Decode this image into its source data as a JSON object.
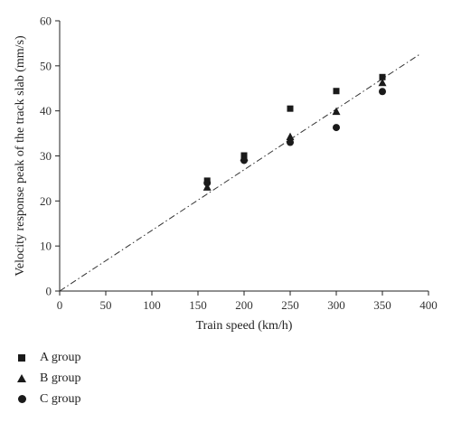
{
  "chart_data": {
    "type": "scatter",
    "xlabel": "Train speed (km/h)",
    "ylabel": "Velocity response peak of the track slab (mm/s)",
    "xlim": [
      0,
      400
    ],
    "ylim": [
      0,
      60
    ],
    "xticks": [
      0,
      50,
      100,
      150,
      200,
      250,
      300,
      350,
      400
    ],
    "yticks": [
      0,
      10,
      20,
      30,
      40,
      50,
      60
    ],
    "grid": false,
    "legend_position": "below",
    "series": [
      {
        "name": "A group",
        "marker": "square",
        "x": [
          160,
          200,
          250,
          300,
          350
        ],
        "y": [
          24.5,
          30.1,
          40.5,
          44.4,
          47.5
        ]
      },
      {
        "name": "B group",
        "marker": "triangle",
        "x": [
          160,
          200,
          250,
          300,
          350
        ],
        "y": [
          23.0,
          29.6,
          34.2,
          39.8,
          46.2
        ]
      },
      {
        "name": "C group",
        "marker": "circle",
        "x": [
          160,
          200,
          250,
          300,
          350
        ],
        "y": [
          24.0,
          29.0,
          33.0,
          36.3,
          44.3
        ]
      }
    ],
    "trend_line": {
      "style": "dash-dot",
      "x": [
        0,
        390
      ],
      "y": [
        0,
        52.5
      ]
    }
  }
}
